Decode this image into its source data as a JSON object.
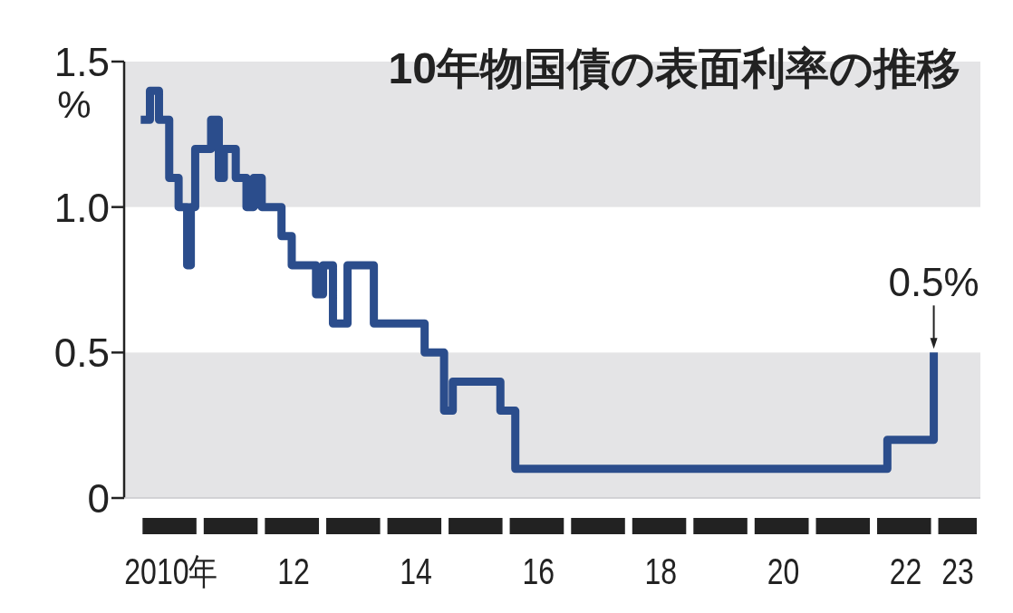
{
  "chart_data": {
    "type": "step",
    "title": "10年物国債の表面利率の推移",
    "ylabel": "%",
    "x": [
      "2010-01-01",
      "2010-02-25",
      "2010-04-20",
      "2010-06-20",
      "2010-08-15",
      "2010-10-05",
      "2010-10-27",
      "2010-11-22",
      "2011-02-25",
      "2011-04-12",
      "2011-05-12",
      "2011-07-22",
      "2011-09-24",
      "2011-11-06",
      "2011-12-24",
      "2012-04-20",
      "2012-06-20",
      "2012-11-12",
      "2012-12-24",
      "2013-02-21",
      "2013-05-19",
      "2013-10-23",
      "2014-08-22",
      "2014-12-16",
      "2015-02-06",
      "2015-11-17",
      "2016-02-14",
      "2022-03-14",
      "2022-12-16"
    ],
    "series": [
      {
        "color": "#2b4d8c",
        "values": [
          1.3,
          1.4,
          1.3,
          1.1,
          1.0,
          0.8,
          1.0,
          1.2,
          1.3,
          1.1,
          1.2,
          1.1,
          1.0,
          1.1,
          1.0,
          0.9,
          0.8,
          0.7,
          0.8,
          0.6,
          0.8,
          0.6,
          0.5,
          0.3,
          0.4,
          0.3,
          0.1,
          0.2,
          0.5
        ]
      }
    ],
    "xticks": [
      {
        "value": "2010-07-01",
        "label": "2010年"
      },
      {
        "value": "2012-07-01",
        "label": "12"
      },
      {
        "value": "2014-07-01",
        "label": "14"
      },
      {
        "value": "2016-07-01",
        "label": "16"
      },
      {
        "value": "2018-07-01",
        "label": "18"
      },
      {
        "value": "2020-07-01",
        "label": "20"
      },
      {
        "value": "2022-07-01",
        "label": "22"
      },
      {
        "value": "2023-05-08",
        "label": "23"
      }
    ],
    "xlim": [
      "2009-09-24",
      "2023-09-20"
    ],
    "ylim": [
      0,
      1.5
    ],
    "yticks": [
      0,
      {
        "value": 0.5,
        "label": "0.5"
      },
      {
        "value": 1.0,
        "label": "1.0"
      },
      {
        "value": 1.5,
        "label": "1.5"
      }
    ],
    "bands": [
      {
        "axis": "y",
        "from": 0,
        "to": 0.5,
        "color": "#e4e4e6"
      },
      {
        "axis": "y",
        "from": 1.0,
        "to": 1.5,
        "color": "#e4e4e6"
      }
    ],
    "annotations": [
      {
        "text": "0.5%",
        "x": "2022-12-16",
        "y": 0.5
      }
    ],
    "grid": false
  }
}
